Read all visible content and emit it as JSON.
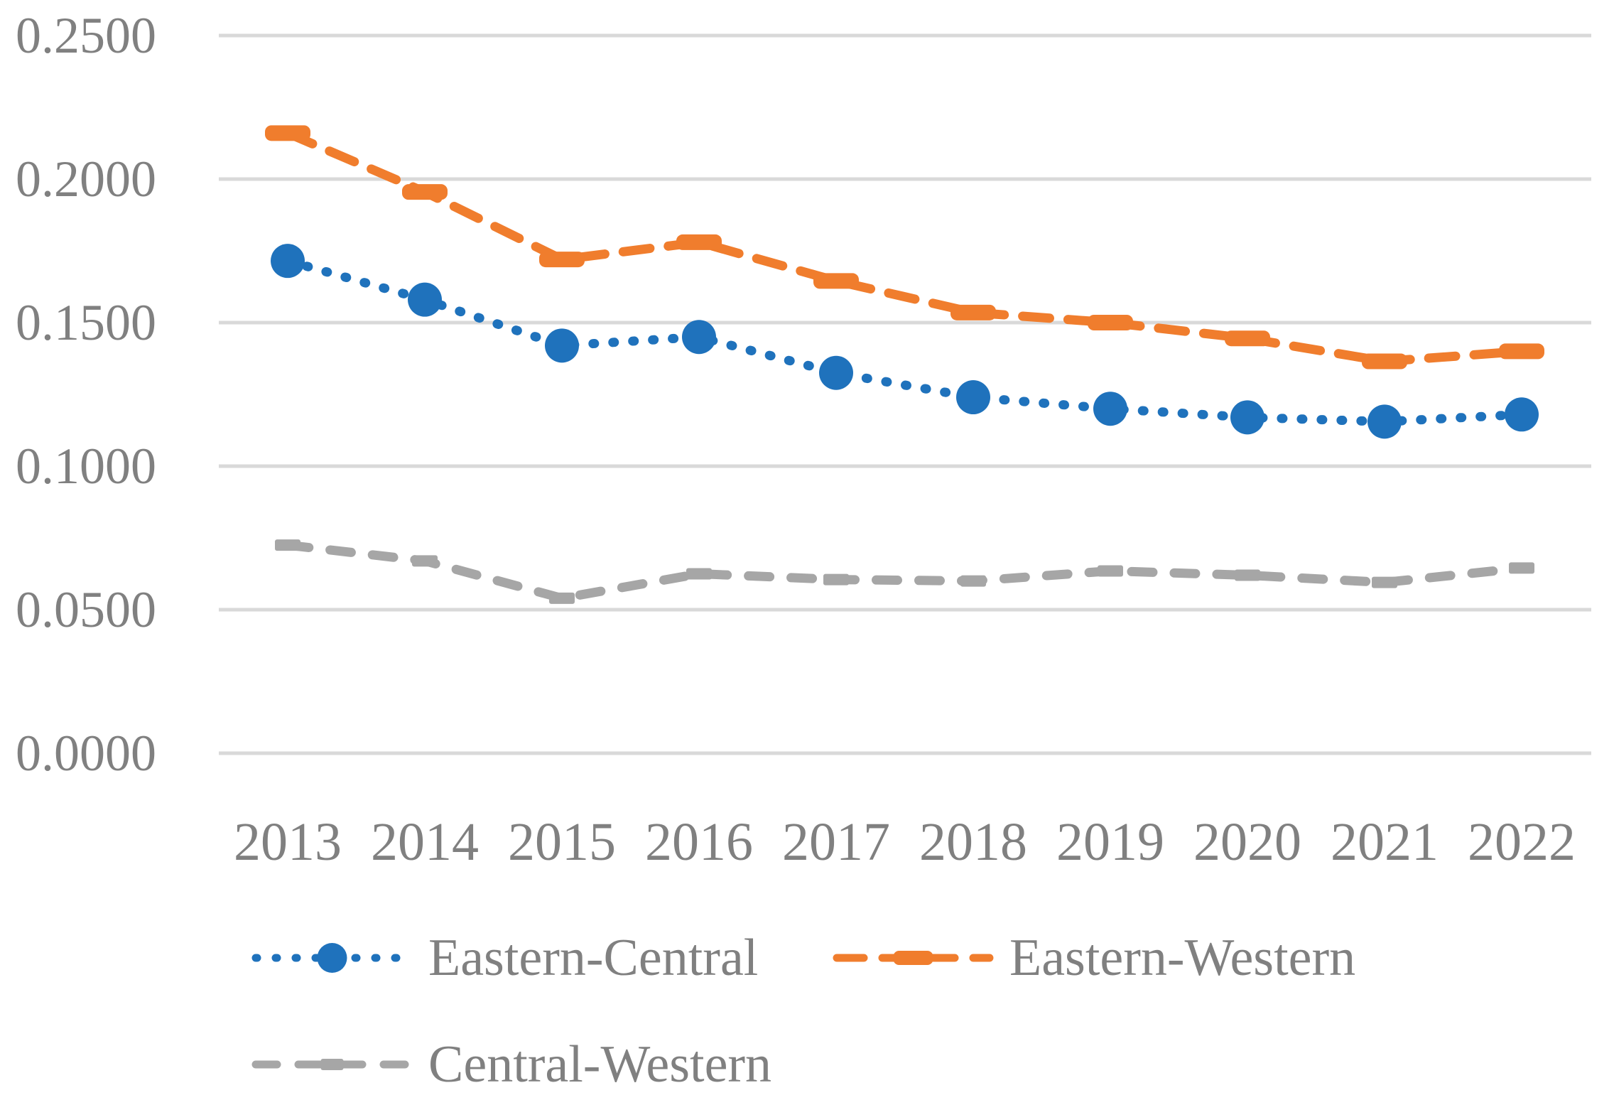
{
  "chart_data": {
    "type": "line",
    "title": "",
    "xlabel": "",
    "ylabel": "",
    "categories": [
      "2013",
      "2014",
      "2015",
      "2016",
      "2017",
      "2018",
      "2019",
      "2020",
      "2021",
      "2022"
    ],
    "series": [
      {
        "name": "Eastern-Central",
        "color": "#1F72BC",
        "line_style": "dotted",
        "marker": "circle",
        "values": [
          0.1715,
          0.158,
          0.142,
          0.145,
          0.1325,
          0.124,
          0.12,
          0.117,
          0.1155,
          0.118
        ]
      },
      {
        "name": "Eastern-Western",
        "color": "#F07D2D",
        "line_style": "dashed",
        "marker": "dash",
        "values": [
          0.216,
          0.1955,
          0.172,
          0.178,
          0.1645,
          0.1535,
          0.15,
          0.1445,
          0.1365,
          0.14
        ]
      },
      {
        "name": "Central-Western",
        "color": "#A6A6A6",
        "line_style": "short-dashed",
        "marker": "square",
        "values": [
          0.0725,
          0.067,
          0.054,
          0.0625,
          0.0605,
          0.06,
          0.0635,
          0.062,
          0.0595,
          0.0645
        ]
      }
    ],
    "yticks": [
      {
        "value": 0.25,
        "label": "0.2500"
      },
      {
        "value": 0.2,
        "label": "0.2000"
      },
      {
        "value": 0.15,
        "label": "0.1500"
      },
      {
        "value": 0.1,
        "label": "0.1000"
      },
      {
        "value": 0.05,
        "label": "0.0500"
      },
      {
        "value": 0.0,
        "label": "0.0000"
      }
    ],
    "ylim": [
      0,
      0.25
    ],
    "grid": true,
    "legend_position": "bottom"
  },
  "style": {
    "grid_color": "#D9D9D9",
    "tick_label_color": "#808080",
    "legend_text_color": "#808080",
    "background_color": "#FFFFFF"
  }
}
